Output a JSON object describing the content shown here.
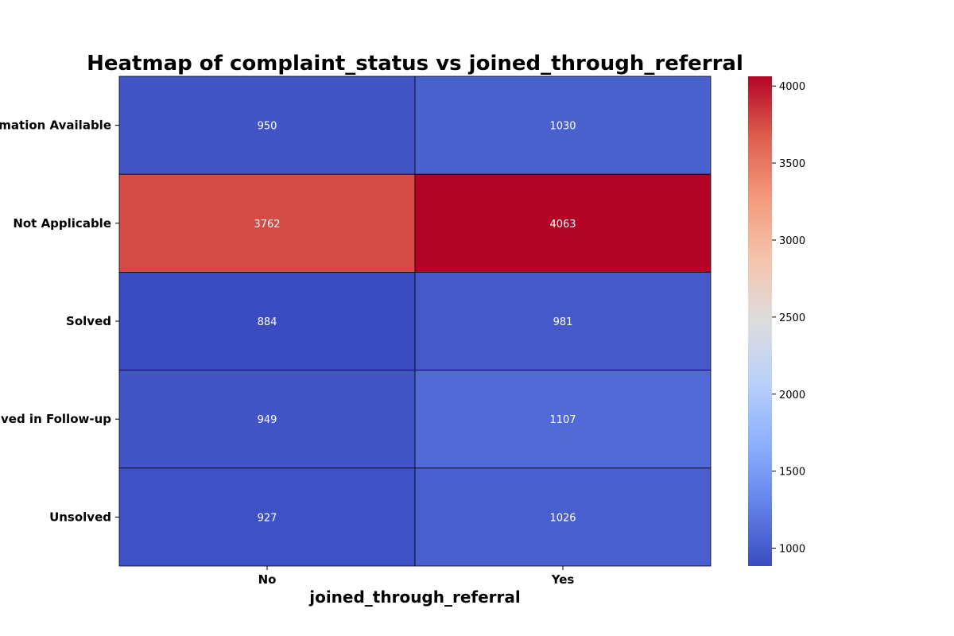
{
  "chart_data": {
    "type": "heatmap",
    "title": "Heatmap of complaint_status vs joined_through_referral",
    "xlabel": "joined_through_referral",
    "ylabel": "",
    "columns": [
      "No",
      "Yes"
    ],
    "rows": [
      "No Information Available",
      "Not Applicable",
      "Solved",
      "Solved in Follow-up",
      "Unsolved"
    ],
    "values": [
      [
        950,
        1030
      ],
      [
        3762,
        4063
      ],
      [
        884,
        981
      ],
      [
        949,
        1107
      ],
      [
        927,
        1026
      ]
    ],
    "colormap": "coolwarm",
    "vmin": 884,
    "vmax": 4063,
    "colorbar_ticks": [
      1000,
      1500,
      2000,
      2500,
      3000,
      3500,
      4000
    ]
  }
}
